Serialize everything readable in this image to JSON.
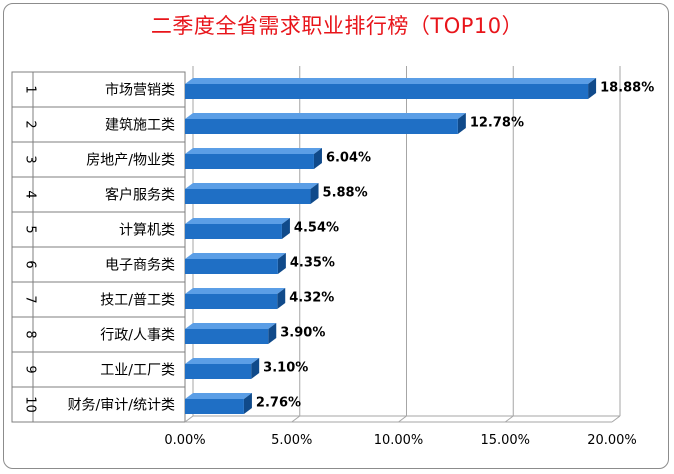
{
  "chart_data": {
    "type": "bar",
    "orientation": "horizontal",
    "title": "二季度全省需求职业排行榜（TOP10）",
    "title_color": "#e8141a",
    "bar_color": "#1f6fc5",
    "ranks": [
      "1",
      "2",
      "3",
      "4",
      "5",
      "6",
      "7",
      "8",
      "9",
      "10"
    ],
    "categories": [
      "市场营销类",
      "建筑施工类",
      "房地产/物业类",
      "客户服务类",
      "计算机类",
      "电子商务类",
      "技工/普工类",
      "行政/人事类",
      "工业/工厂类",
      "财务/审计/统计类"
    ],
    "values": [
      18.88,
      12.78,
      6.04,
      5.88,
      4.54,
      4.35,
      4.32,
      3.9,
      3.1,
      2.76
    ],
    "value_labels": [
      "18.88%",
      "12.78%",
      "6.04%",
      "5.88%",
      "4.54%",
      "4.35%",
      "4.32%",
      "3.90%",
      "3.10%",
      "2.76%"
    ],
    "xlim": [
      0,
      20
    ],
    "xticks": [
      0,
      5,
      10,
      15,
      20
    ],
    "xtick_labels": [
      "0.00%",
      "5.00%",
      "10.00%",
      "15.00%",
      "20.00%"
    ],
    "grid": true
  }
}
